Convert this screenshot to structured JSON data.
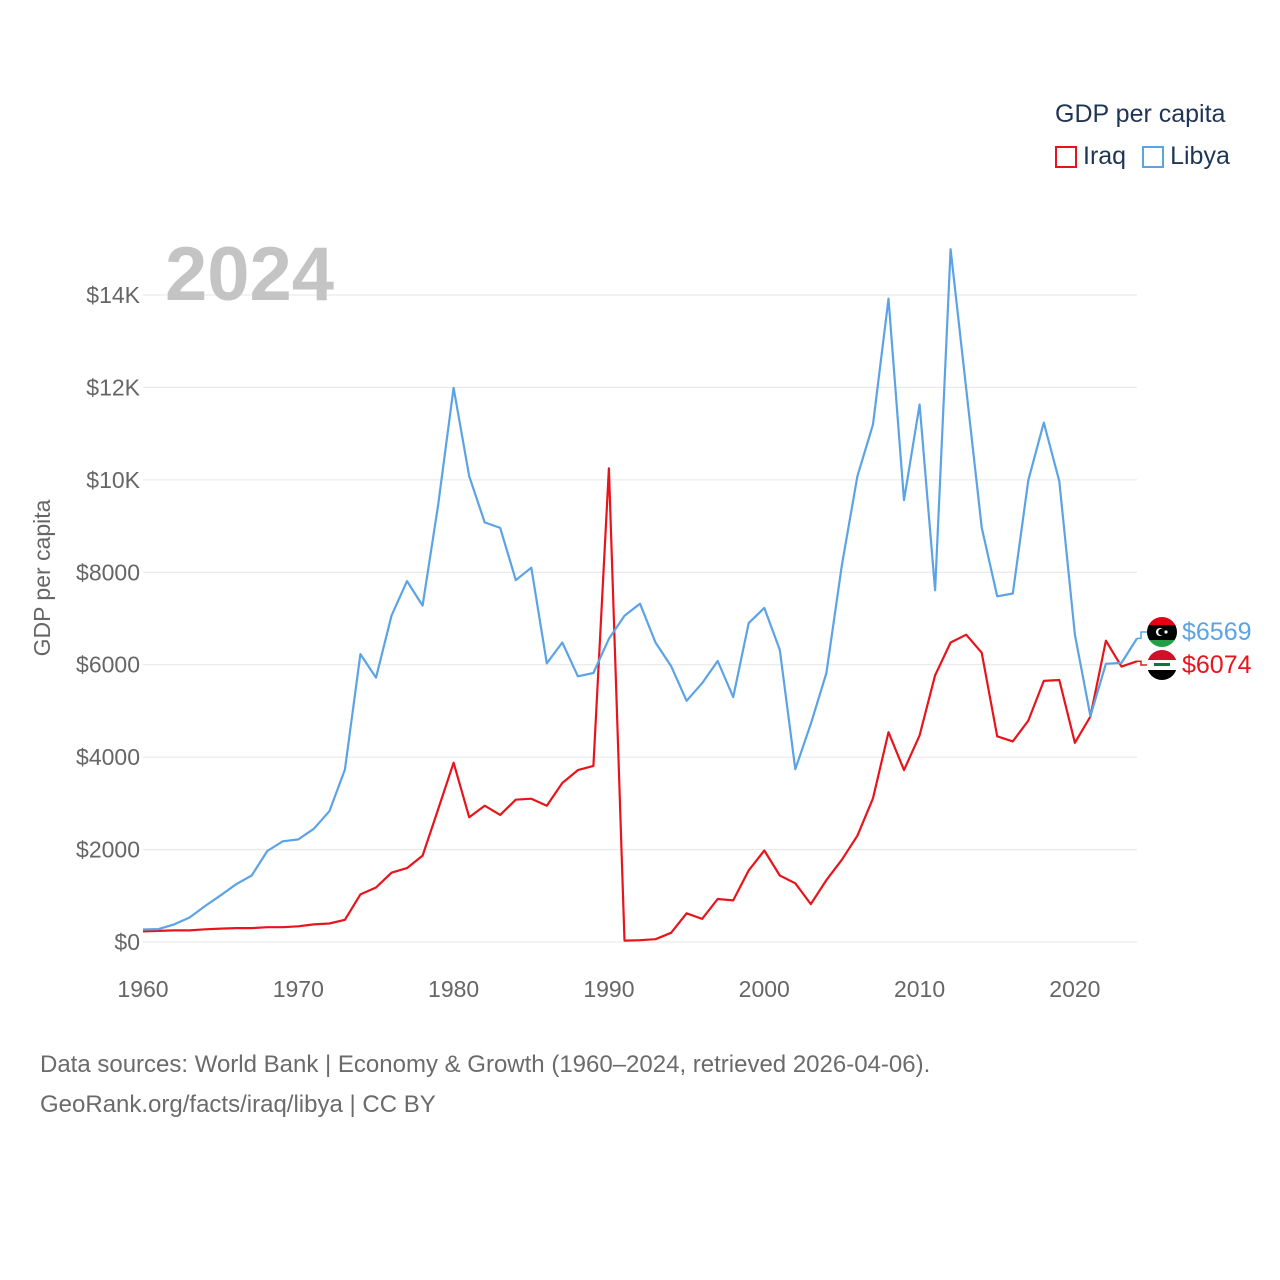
{
  "chart_data": {
    "type": "line",
    "year_label": "2024",
    "ylabel": "GDP per capita",
    "legend_title": "GDP per capita",
    "x_ticks": [
      1960,
      1970,
      1980,
      1990,
      2000,
      2010,
      2020
    ],
    "y_ticks": [
      {
        "value": 0,
        "label": "$0"
      },
      {
        "value": 2000,
        "label": "$2000"
      },
      {
        "value": 4000,
        "label": "$4000"
      },
      {
        "value": 6000,
        "label": "$6000"
      },
      {
        "value": 8000,
        "label": "$8000"
      },
      {
        "value": 10000,
        "label": "$10K"
      },
      {
        "value": 12000,
        "label": "$12K"
      },
      {
        "value": 14000,
        "label": "$14K"
      }
    ],
    "xlim": [
      1960,
      2024
    ],
    "ylim": [
      0,
      14000
    ],
    "series": [
      {
        "name": "Iraq",
        "color": "#e8141c",
        "end_label": "$6074",
        "x": [
          1960,
          1961,
          1962,
          1963,
          1964,
          1965,
          1966,
          1967,
          1968,
          1969,
          1970,
          1971,
          1972,
          1973,
          1974,
          1975,
          1976,
          1977,
          1978,
          1979,
          1980,
          1981,
          1982,
          1983,
          1984,
          1985,
          1986,
          1987,
          1988,
          1989,
          1990,
          1991,
          1992,
          1993,
          1994,
          1995,
          1996,
          1997,
          1998,
          1999,
          2000,
          2001,
          2002,
          2003,
          2004,
          2005,
          2006,
          2007,
          2008,
          2009,
          2010,
          2011,
          2012,
          2013,
          2014,
          2015,
          2016,
          2017,
          2018,
          2019,
          2020,
          2021,
          2022,
          2023,
          2024
        ],
        "values": [
          230,
          240,
          250,
          250,
          275,
          290,
          300,
          300,
          320,
          320,
          340,
          380,
          400,
          480,
          1030,
          1180,
          1500,
          1600,
          1870,
          2870,
          3880,
          2700,
          2950,
          2750,
          3080,
          3100,
          2950,
          3440,
          3720,
          3810,
          10250,
          30,
          40,
          60,
          200,
          620,
          500,
          930,
          900,
          1550,
          1980,
          1440,
          1270,
          820,
          1340,
          1780,
          2300,
          3110,
          4540,
          3720,
          4470,
          5770,
          6480,
          6650,
          6260,
          4450,
          4340,
          4790,
          5650,
          5670,
          4310,
          4880,
          6520,
          5960,
          6074
        ]
      },
      {
        "name": "Libya",
        "color": "#5ca3e6",
        "end_label": "$6569",
        "x": [
          1960,
          1961,
          1962,
          1963,
          1964,
          1965,
          1966,
          1967,
          1968,
          1969,
          1970,
          1971,
          1972,
          1973,
          1974,
          1975,
          1976,
          1977,
          1978,
          1979,
          1980,
          1981,
          1982,
          1983,
          1984,
          1985,
          1986,
          1987,
          1988,
          1989,
          1990,
          1991,
          1992,
          1993,
          1994,
          1995,
          1996,
          1997,
          1998,
          1999,
          2000,
          2001,
          2002,
          2003,
          2004,
          2005,
          2006,
          2007,
          2008,
          2009,
          2010,
          2011,
          2012,
          2013,
          2014,
          2015,
          2016,
          2017,
          2018,
          2019,
          2020,
          2021,
          2022,
          2023,
          2024
        ],
        "values": [
          270,
          280,
          380,
          530,
          780,
          1010,
          1250,
          1440,
          1970,
          2180,
          2220,
          2450,
          2830,
          3730,
          6230,
          5720,
          7060,
          7810,
          7280,
          9450,
          11990,
          10080,
          9080,
          8960,
          7830,
          8100,
          6030,
          6480,
          5750,
          5820,
          6560,
          7060,
          7320,
          6480,
          5970,
          5220,
          5600,
          6080,
          5300,
          6900,
          7230,
          6320,
          3740,
          4720,
          5820,
          8160,
          10080,
          11200,
          13920,
          9560,
          11630,
          7610,
          14990,
          11970,
          8970,
          7480,
          7540,
          9990,
          11240,
          9970,
          6650,
          4890,
          6020,
          6040,
          6569
        ]
      }
    ]
  },
  "footer": {
    "line1": "Data sources: World Bank | Economy & Growth (1960–2024, retrieved 2026-04-06).",
    "line2": "GeoRank.org/facts/iraq/libya | CC BY"
  }
}
